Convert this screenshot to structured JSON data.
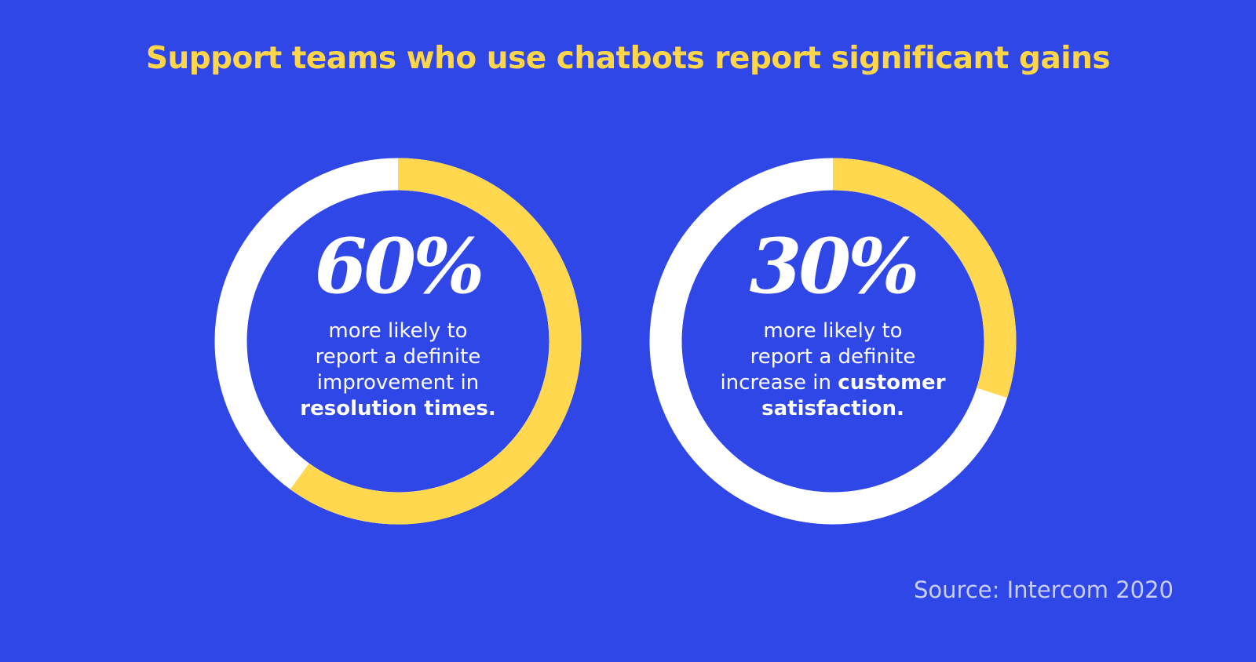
{
  "title": "Support teams who use chatbots report significant gains",
  "colors": {
    "background": "#3047E8",
    "highlight": "#FFD84F",
    "remainder": "#FFFFFF",
    "title": "#FFD54A"
  },
  "chart_data": [
    {
      "type": "pie",
      "variant": "donut",
      "value": 60,
      "max": 100,
      "label": "60%",
      "description_lines": [
        {
          "text": "more likely to",
          "bold": false
        },
        {
          "text": "report a definite",
          "bold": false
        },
        {
          "text": "improvement in",
          "bold": false
        },
        {
          "text": "resolution times.",
          "bold": true
        }
      ]
    },
    {
      "type": "pie",
      "variant": "donut",
      "value": 30,
      "max": 100,
      "label": "30%",
      "description_lines": [
        {
          "text": "more likely to",
          "bold": false
        },
        {
          "text": "report a definite",
          "bold": false
        },
        {
          "text": "increase in ",
          "bold": false,
          "bold_tail": "customer"
        },
        {
          "text": "satisfaction.",
          "bold": true
        }
      ]
    }
  ],
  "source": "Source: Intercom 2020"
}
